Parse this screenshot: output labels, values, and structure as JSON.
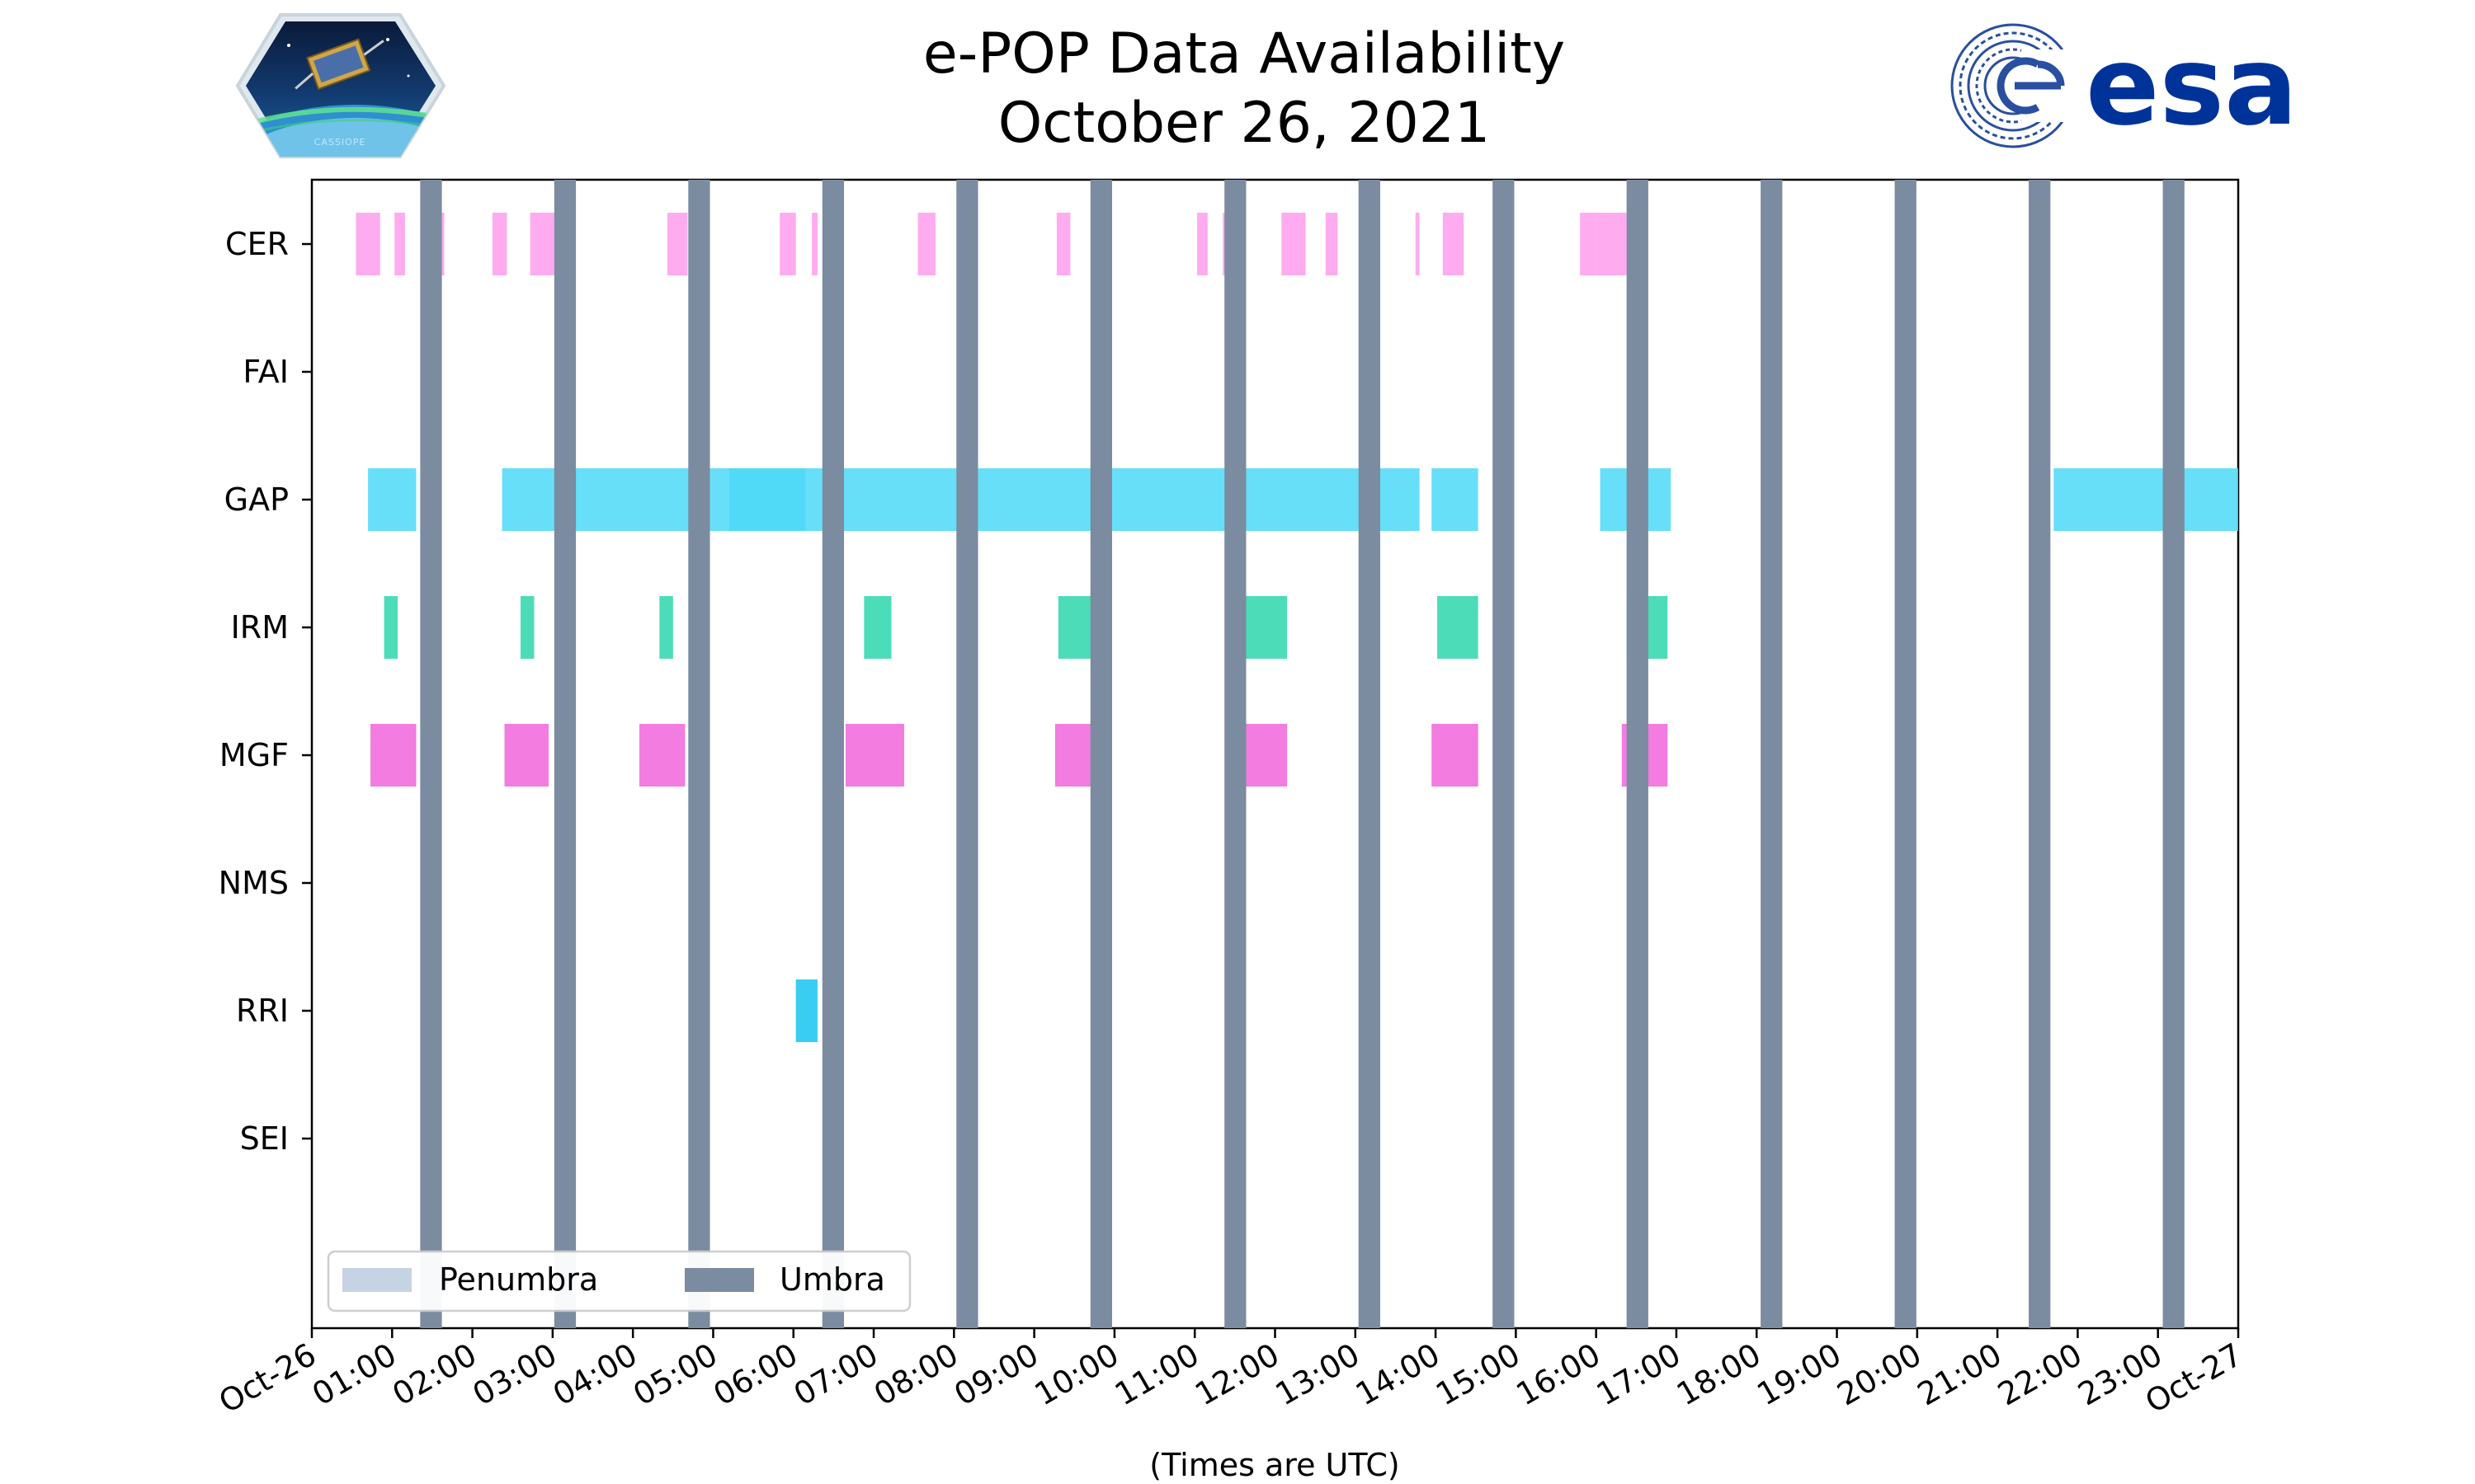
{
  "chart_data": {
    "type": "timeline",
    "title": "e-POP Data Availability",
    "subtitle": "October 26, 2021",
    "xlabel": "(Times are UTC)",
    "x_unit": "hours since 2021-10-26 00:00 UTC",
    "xlim": [
      0,
      24
    ],
    "x_ticks": [
      {
        "value": 0,
        "label": "Oct-26"
      },
      {
        "value": 1,
        "label": "01:00"
      },
      {
        "value": 2,
        "label": "02:00"
      },
      {
        "value": 3,
        "label": "03:00"
      },
      {
        "value": 4,
        "label": "04:00"
      },
      {
        "value": 5,
        "label": "05:00"
      },
      {
        "value": 6,
        "label": "06:00"
      },
      {
        "value": 7,
        "label": "07:00"
      },
      {
        "value": 8,
        "label": "08:00"
      },
      {
        "value": 9,
        "label": "09:00"
      },
      {
        "value": 10,
        "label": "10:00"
      },
      {
        "value": 11,
        "label": "11:00"
      },
      {
        "value": 12,
        "label": "12:00"
      },
      {
        "value": 13,
        "label": "13:00"
      },
      {
        "value": 14,
        "label": "14:00"
      },
      {
        "value": 15,
        "label": "15:00"
      },
      {
        "value": 16,
        "label": "16:00"
      },
      {
        "value": 17,
        "label": "17:00"
      },
      {
        "value": 18,
        "label": "18:00"
      },
      {
        "value": 19,
        "label": "19:00"
      },
      {
        "value": 20,
        "label": "20:00"
      },
      {
        "value": 21,
        "label": "21:00"
      },
      {
        "value": 22,
        "label": "22:00"
      },
      {
        "value": 23,
        "label": "23:00"
      },
      {
        "value": 24,
        "label": "Oct-27"
      }
    ],
    "instruments": [
      "CER",
      "FAI",
      "GAP",
      "IRM",
      "MGF",
      "NMS",
      "RRI",
      "SEI"
    ],
    "series": [
      {
        "name": "CER",
        "color": "#ff9cec",
        "intervals": [
          [
            0.55,
            0.85
          ],
          [
            1.03,
            1.16
          ],
          [
            1.52,
            1.65
          ],
          [
            2.25,
            2.43
          ],
          [
            2.72,
            3.05
          ],
          [
            4.43,
            4.68
          ],
          [
            5.83,
            6.03
          ],
          [
            6.23,
            6.3
          ],
          [
            7.55,
            7.77
          ],
          [
            9.28,
            9.45
          ],
          [
            11.03,
            11.16
          ],
          [
            11.35,
            11.49
          ],
          [
            12.08,
            12.38
          ],
          [
            12.63,
            12.78
          ],
          [
            13.06,
            13.28
          ],
          [
            13.75,
            13.8
          ],
          [
            14.09,
            14.35
          ],
          [
            15.8,
            16.0
          ],
          [
            16.0,
            16.38
          ]
        ]
      },
      {
        "name": "FAI",
        "color": "#ff9cec",
        "intervals": []
      },
      {
        "name": "GAP",
        "color": "#4dd9f7",
        "intervals": [
          [
            0.7,
            1.3
          ],
          [
            2.37,
            13.8
          ],
          [
            5.2,
            6.15
          ],
          [
            13.95,
            14.53
          ],
          [
            14.78,
            14.82
          ],
          [
            16.05,
            16.93
          ],
          [
            21.7,
            24.0
          ]
        ]
      },
      {
        "name": "IRM",
        "color": "#2ed6ab",
        "intervals": [
          [
            0.9,
            1.07
          ],
          [
            2.6,
            2.77
          ],
          [
            4.33,
            4.5
          ],
          [
            6.88,
            7.22
          ],
          [
            9.3,
            9.81
          ],
          [
            11.63,
            12.15
          ],
          [
            14.02,
            14.53
          ],
          [
            16.38,
            16.89
          ]
        ]
      },
      {
        "name": "MGF",
        "color": "#f065d9",
        "intervals": [
          [
            0.73,
            1.3
          ],
          [
            2.4,
            2.95
          ],
          [
            4.08,
            4.65
          ],
          [
            6.65,
            7.38
          ],
          [
            9.26,
            9.82
          ],
          [
            11.6,
            12.15
          ],
          [
            13.95,
            14.53
          ],
          [
            16.32,
            16.89
          ]
        ]
      },
      {
        "name": "NMS",
        "color": "#ff9cec",
        "intervals": []
      },
      {
        "name": "RRI",
        "color": "#16c6ee",
        "intervals": [
          [
            6.03,
            6.3
          ]
        ]
      },
      {
        "name": "SEI",
        "color": "#ff9cec",
        "intervals": []
      }
    ],
    "umbra": {
      "color": "#7b8ba0",
      "intervals": [
        [
          1.35,
          1.62
        ],
        [
          3.02,
          3.29
        ],
        [
          4.69,
          4.96
        ],
        [
          6.36,
          6.63
        ],
        [
          8.03,
          8.3
        ],
        [
          9.7,
          9.97
        ],
        [
          11.37,
          11.64
        ],
        [
          13.04,
          13.31
        ],
        [
          14.71,
          14.98
        ],
        [
          16.38,
          16.65
        ],
        [
          18.05,
          18.32
        ],
        [
          19.72,
          19.99
        ],
        [
          21.39,
          21.66
        ],
        [
          23.06,
          23.33
        ]
      ]
    },
    "penumbra": {
      "color": "#c6d3e4",
      "intervals": []
    },
    "legend": {
      "position": "lower-left",
      "entries": [
        {
          "label": "Penumbra",
          "color": "#c6d3e4"
        },
        {
          "label": "Umbra",
          "color": "#7b8ba0"
        }
      ]
    }
  },
  "logos": {
    "cassiope_text": "CASSIOPE",
    "esa_text": "esa",
    "esa_color": "#003399"
  }
}
